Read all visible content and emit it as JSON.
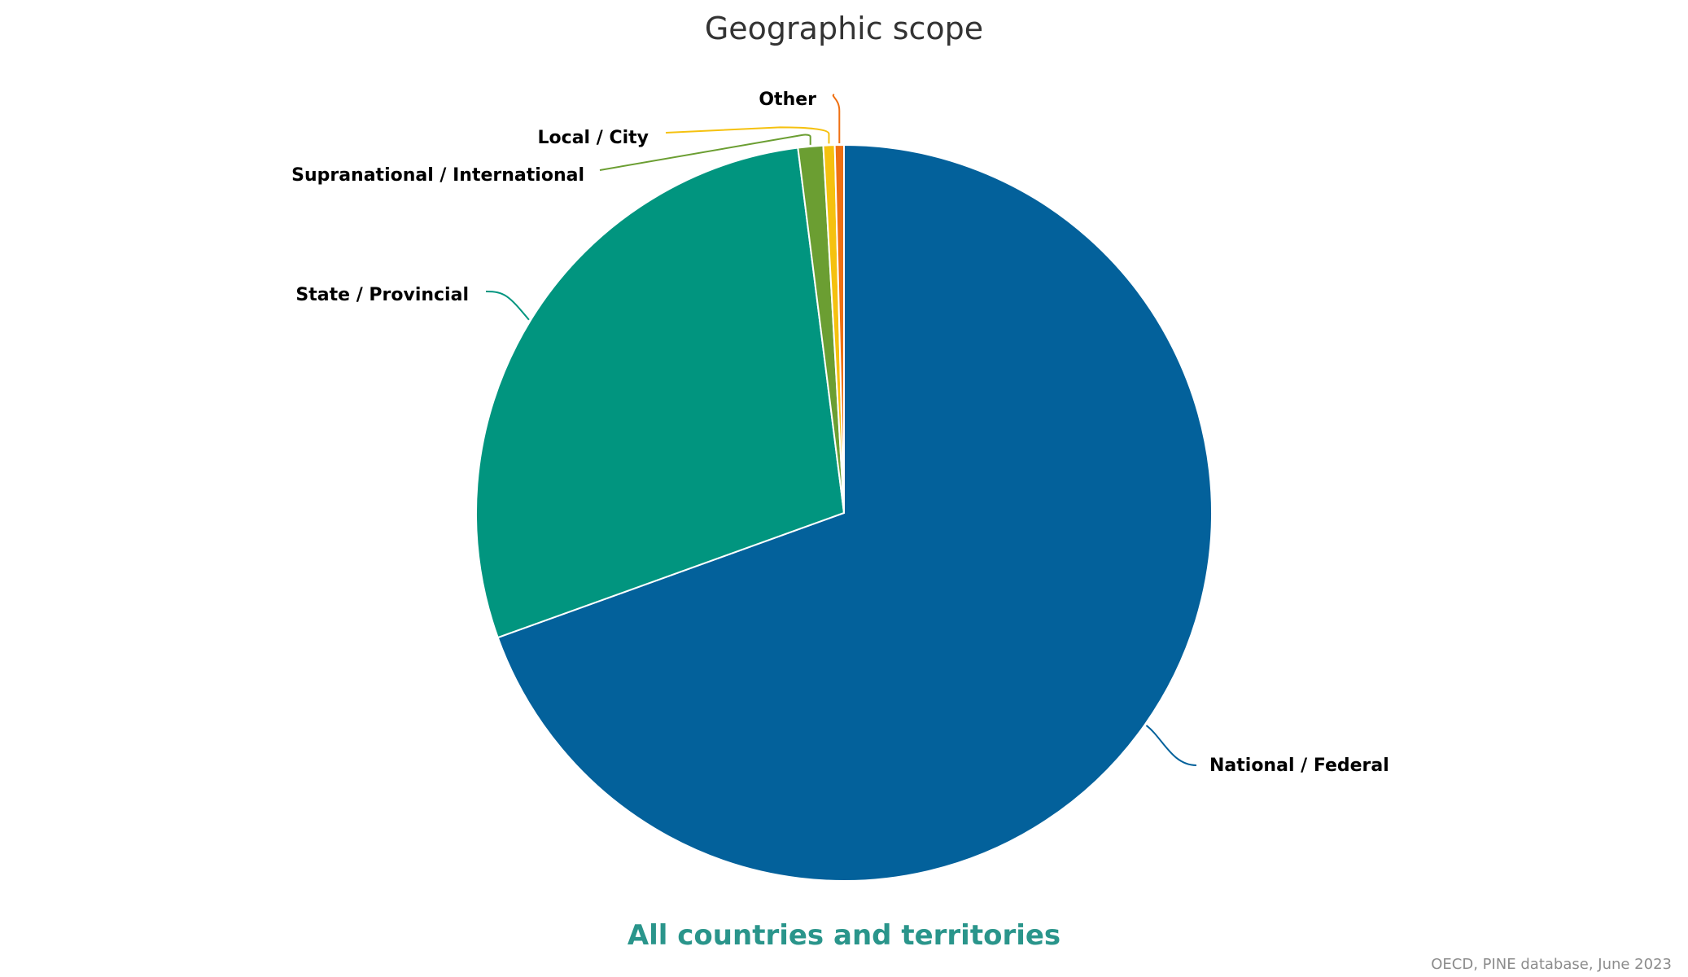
{
  "chart_data": {
    "type": "pie",
    "title": "Geographic scope",
    "subtitle": "All countries and territories",
    "source": "OECD, PINE database, June 2023",
    "slices": [
      {
        "label": "National / Federal",
        "value": 69.5,
        "color": "#03619b"
      },
      {
        "label": "State / Provincial",
        "value": 28.5,
        "color": "#01957f"
      },
      {
        "label": "Supranational / International",
        "value": 1.1,
        "color": "#6b9e32"
      },
      {
        "label": "Local / City",
        "value": 0.5,
        "color": "#f5c10f"
      },
      {
        "label": "Other",
        "value": 0.4,
        "color": "#ef7012"
      }
    ],
    "subtitle_color": "#2a958b"
  }
}
